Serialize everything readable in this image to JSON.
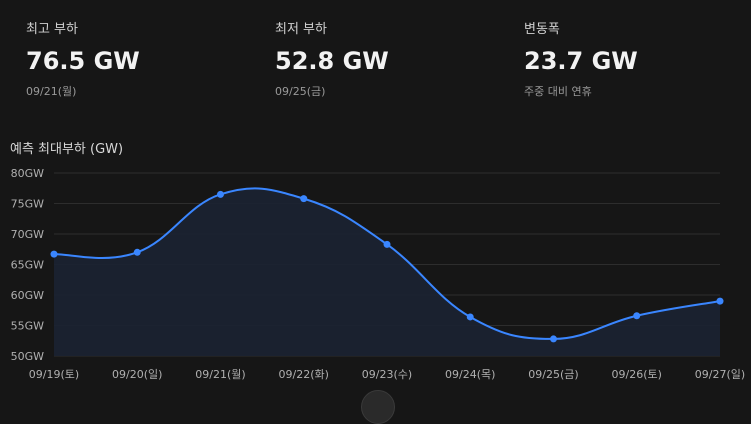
{
  "stats": [
    {
      "label": "최고 부하",
      "value": "76.5 GW",
      "sub": "09/21(월)"
    },
    {
      "label": "최저 부하",
      "value": "52.8 GW",
      "sub": "09/25(금)"
    },
    {
      "label": "변동폭",
      "value": "23.7 GW",
      "sub": "주중 대비 연휴"
    }
  ],
  "chart_title": "예측 최대부하 (GW)",
  "chart_data": {
    "type": "area",
    "title": "예측 최대부하 (GW)",
    "categories": [
      "09/19(토)",
      "09/20(일)",
      "09/21(월)",
      "09/22(화)",
      "09/23(수)",
      "09/24(목)",
      "09/25(금)",
      "09/26(토)",
      "09/27(일)"
    ],
    "series": [
      {
        "values": [
          66.7,
          67.0,
          76.5,
          75.8,
          68.3,
          56.4,
          52.8,
          56.6,
          59.0
        ]
      }
    ],
    "ylim": [
      50,
      80
    ],
    "yticks": [
      "50GW",
      "55GW",
      "60GW",
      "65GW",
      "70GW",
      "75GW",
      "80GW"
    ],
    "grid": true,
    "colors": {
      "line": "#3a86ff",
      "fill": "#1b2232",
      "grid": "#2d2d2d"
    }
  }
}
